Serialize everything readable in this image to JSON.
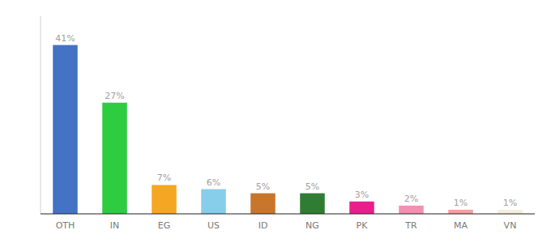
{
  "chart_data": {
    "type": "bar",
    "categories": [
      "OTH",
      "IN",
      "EG",
      "US",
      "ID",
      "NG",
      "PK",
      "TR",
      "MA",
      "VN"
    ],
    "values": [
      41,
      27,
      7,
      6,
      5,
      5,
      3,
      2,
      1,
      1
    ],
    "value_labels": [
      "41%",
      "27%",
      "7%",
      "6%",
      "5%",
      "5%",
      "3%",
      "2%",
      "1%",
      "1%"
    ],
    "colors": [
      "#4472c4",
      "#2ecc40",
      "#f5a623",
      "#87ceeb",
      "#c8762b",
      "#2e7d32",
      "#e91e8c",
      "#f48fb1",
      "#f4a0a0",
      "#f5f0dc"
    ],
    "ylim": [
      0,
      48
    ],
    "data_labels": true,
    "tick_labels": "x",
    "grid": false
  }
}
